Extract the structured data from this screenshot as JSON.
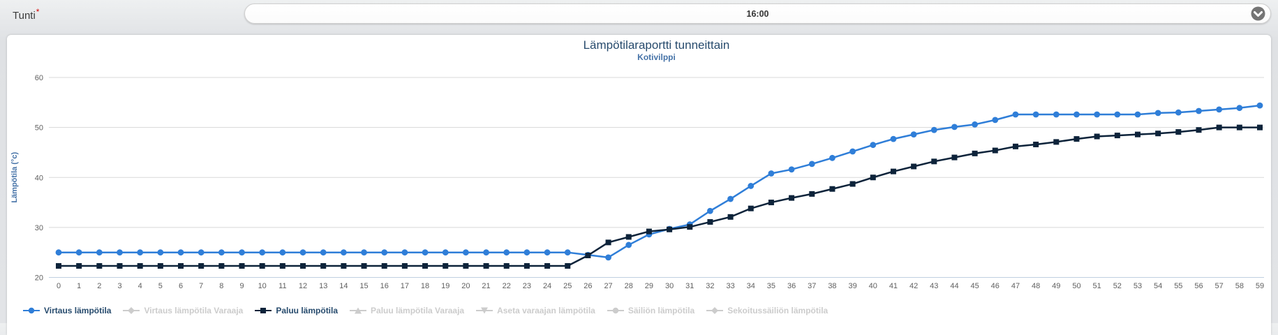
{
  "toolbar": {
    "label": "Tunti",
    "required_mark": "*",
    "dropdown_value": "16:00"
  },
  "colors": {
    "series_flow": "#2f7ed8",
    "series_return": "#0d233a",
    "disabled": "#cccccc",
    "title": "#274b6d",
    "subtitle": "#4572a7",
    "axis_label": "#606060",
    "gridline": "#d8d8d8",
    "axis_line": "#c0d0e0",
    "legend_text": "#274b6d"
  },
  "chart_data": {
    "type": "line",
    "title": "Lämpötilaraportti tunneittain",
    "subtitle": "Kotivilppi",
    "xlabel": "",
    "ylabel": "Lämpötila (°c)",
    "ylim": [
      20,
      60
    ],
    "yticks": [
      20,
      30,
      40,
      50,
      60
    ],
    "grid": true,
    "legend_position": "bottom-left",
    "x": [
      0,
      1,
      2,
      3,
      4,
      5,
      6,
      7,
      8,
      9,
      10,
      11,
      12,
      13,
      14,
      15,
      16,
      17,
      18,
      19,
      20,
      21,
      22,
      23,
      24,
      25,
      26,
      27,
      28,
      29,
      30,
      31,
      32,
      33,
      34,
      35,
      36,
      37,
      38,
      39,
      40,
      41,
      42,
      43,
      44,
      45,
      46,
      47,
      48,
      49,
      50,
      51,
      52,
      53,
      54,
      55,
      56,
      57,
      58,
      59
    ],
    "series": [
      {
        "name": "Virtaus lämpötila",
        "color": "#2f7ed8",
        "marker": "circle",
        "enabled": true,
        "values": [
          25,
          25,
          25,
          25,
          25,
          25,
          25,
          25,
          25,
          25,
          25,
          25,
          25,
          25,
          25,
          25,
          25,
          25,
          25,
          25,
          25,
          25,
          25,
          25,
          25,
          25,
          24.5,
          24,
          26.5,
          28.6,
          29.7,
          30.6,
          33.3,
          35.7,
          38.3,
          40.8,
          41.6,
          42.7,
          43.9,
          45.2,
          46.5,
          47.7,
          48.6,
          49.5,
          50.1,
          50.6,
          51.5,
          52.6,
          52.6,
          52.6,
          52.6,
          52.6,
          52.6,
          52.6,
          52.9,
          53,
          53.3,
          53.6,
          53.9,
          54.4
        ]
      },
      {
        "name": "Virtaus lämpötila Varaaja",
        "color": "#cccccc",
        "marker": "diamond",
        "enabled": false,
        "values": []
      },
      {
        "name": "Paluu lämpötila",
        "color": "#0d233a",
        "marker": "square",
        "enabled": true,
        "values": [
          22.3,
          22.3,
          22.3,
          22.3,
          22.3,
          22.3,
          22.3,
          22.3,
          22.3,
          22.3,
          22.3,
          22.3,
          22.3,
          22.3,
          22.3,
          22.3,
          22.3,
          22.3,
          22.3,
          22.3,
          22.3,
          22.3,
          22.3,
          22.3,
          22.3,
          22.3,
          24.4,
          27,
          28.1,
          29.2,
          29.6,
          30.1,
          31.1,
          32.1,
          33.8,
          35,
          35.9,
          36.7,
          37.7,
          38.7,
          40,
          41.2,
          42.2,
          43.2,
          44,
          44.8,
          45.4,
          46.2,
          46.6,
          47.1,
          47.7,
          48.2,
          48.4,
          48.6,
          48.8,
          49.1,
          49.5,
          50,
          50,
          50
        ]
      },
      {
        "name": "Paluu lämpötila Varaaja",
        "color": "#cccccc",
        "marker": "triangle",
        "enabled": false,
        "values": []
      },
      {
        "name": "Aseta varaajan lämpötila",
        "color": "#cccccc",
        "marker": "triangle-down",
        "enabled": false,
        "values": []
      },
      {
        "name": "Säiliön lämpötila",
        "color": "#cccccc",
        "marker": "circle",
        "enabled": false,
        "values": []
      },
      {
        "name": "Sekoitussäiliön lämpötila",
        "color": "#cccccc",
        "marker": "diamond",
        "enabled": false,
        "values": []
      }
    ]
  }
}
